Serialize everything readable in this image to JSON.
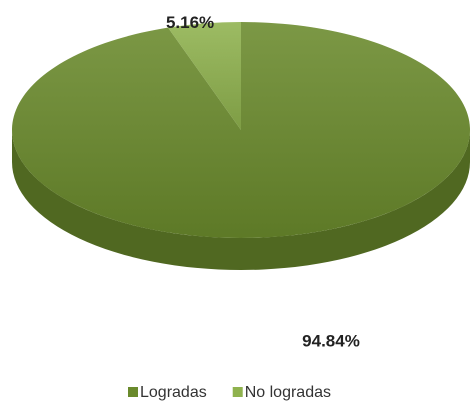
{
  "chart_data": {
    "type": "pie",
    "categories": [
      "Logradas",
      "No logradas"
    ],
    "values": [
      94.84,
      5.16
    ],
    "value_labels": [
      "94.84%",
      "5.16%"
    ],
    "colors": [
      "#6a8a2c",
      "#8fb24e"
    ],
    "legend": "bottom"
  }
}
